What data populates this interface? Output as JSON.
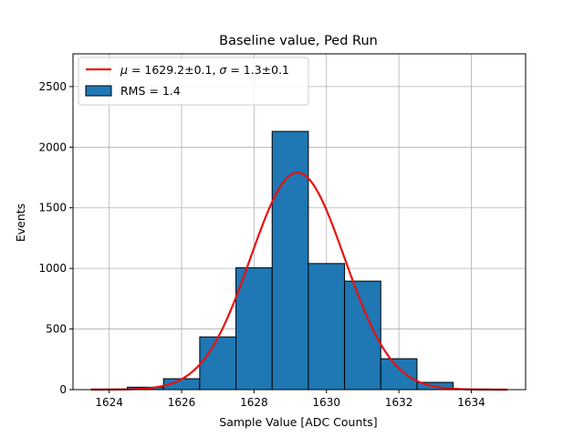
{
  "chart_data": {
    "type": "bar",
    "title": "Baseline value, Ped Run",
    "xlabel": "Sample Value [ADC Counts]",
    "ylabel": "Events",
    "xlim": [
      1623,
      1635.5
    ],
    "ylim": [
      0,
      2770
    ],
    "x_ticks": [
      1624,
      1626,
      1628,
      1630,
      1632,
      1634
    ],
    "x_tick_labels": [
      "1624",
      "1626",
      "1628",
      "1630",
      "1632",
      "1634"
    ],
    "y_ticks": [
      0,
      500,
      1000,
      1500,
      2000,
      2500
    ],
    "y_tick_labels": [
      "0",
      "500",
      "1000",
      "1500",
      "2000",
      "2500"
    ],
    "grid": true,
    "legend_position": "top-left",
    "histogram": {
      "name": "RMS = 1.4",
      "color": "#1f77b4",
      "edge_color": "#000000",
      "bins": [
        {
          "x0": 1623.5,
          "x1": 1624.5,
          "value": 5
        },
        {
          "x0": 1624.5,
          "x1": 1625.5,
          "value": 20
        },
        {
          "x0": 1625.5,
          "x1": 1626.5,
          "value": 90
        },
        {
          "x0": 1626.5,
          "x1": 1627.5,
          "value": 435
        },
        {
          "x0": 1627.5,
          "x1": 1628.5,
          "value": 1005
        },
        {
          "x0": 1628.5,
          "x1": 1629.5,
          "value": 2130
        },
        {
          "x0": 1629.5,
          "x1": 1630.5,
          "value": 1040
        },
        {
          "x0": 1630.5,
          "x1": 1631.5,
          "value": 895
        },
        {
          "x0": 1631.5,
          "x1": 1632.5,
          "value": 255
        },
        {
          "x0": 1632.5,
          "x1": 1633.5,
          "value": 60
        },
        {
          "x0": 1633.5,
          "x1": 1634.5,
          "value": 5
        }
      ]
    },
    "fit": {
      "name": "$\\mu = 1629.2$±0.1, $\\sigma = 1.3$±0.1",
      "type": "gaussian",
      "color": "#e8110f",
      "mu": 1629.2,
      "sigma": 1.3,
      "amplitude": 1790,
      "x_range": [
        1623.5,
        1635
      ]
    }
  }
}
